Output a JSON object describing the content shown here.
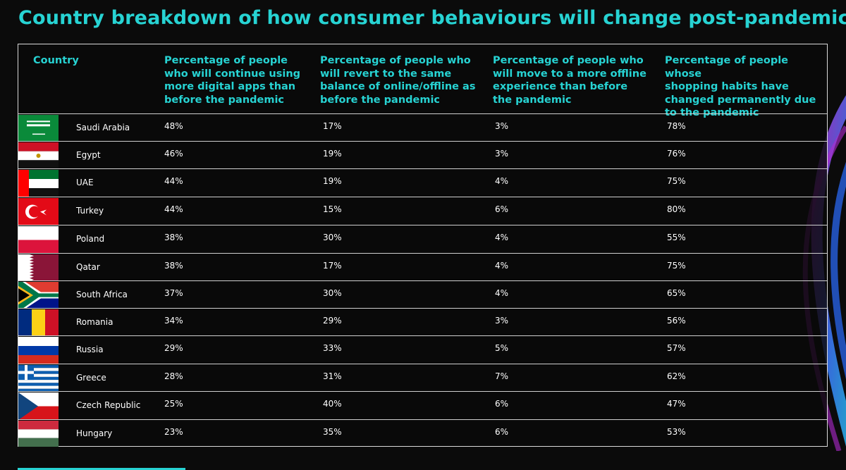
{
  "title": "Country breakdown of how consumer behaviours will change post-pandemic",
  "chart_data": {
    "type": "table",
    "title": "Country breakdown of how consumer behaviours will change post-pandemic",
    "columns": [
      "Country",
      "Percentage of people who will continue using more digital apps than before the pandemic",
      "Percentage of people who will revert to the same balance of online/offline as before the pandemic",
      "Percentage of people who will move to a more offline experience than before the pandemic",
      "Percentage of people whose shopping habits have changed permanently due to the pandemic"
    ],
    "header_lines": [
      [
        "Country"
      ],
      [
        "Percentage of people",
        "who will continue using",
        "more digital apps than",
        "before the pandemic"
      ],
      [
        "Percentage of people who",
        "will revert to the same",
        "balance of online/offline as",
        "before the pandemic"
      ],
      [
        "Percentage of people who",
        "will move to a more offline",
        "experience than before",
        "the pandemic"
      ],
      [
        "Percentage of people whose",
        "shopping habits have",
        "changed permanently due",
        "to the pandemic"
      ]
    ],
    "rows": [
      {
        "country": "Saudi Arabia",
        "flag": "saudi-arabia",
        "digital": "48%",
        "revert": "17%",
        "offline": "3%",
        "changed": "78%"
      },
      {
        "country": "Egypt",
        "flag": "egypt",
        "digital": "46%",
        "revert": "19%",
        "offline": "3%",
        "changed": "76%"
      },
      {
        "country": "UAE",
        "flag": "uae",
        "digital": "44%",
        "revert": "19%",
        "offline": "4%",
        "changed": "75%"
      },
      {
        "country": "Turkey",
        "flag": "turkey",
        "digital": "44%",
        "revert": "15%",
        "offline": "6%",
        "changed": "80%"
      },
      {
        "country": "Poland",
        "flag": "poland",
        "digital": "38%",
        "revert": "30%",
        "offline": "4%",
        "changed": "55%"
      },
      {
        "country": "Qatar",
        "flag": "qatar",
        "digital": "38%",
        "revert": "17%",
        "offline": "4%",
        "changed": "75%"
      },
      {
        "country": "South Africa",
        "flag": "south-africa",
        "digital": "37%",
        "revert": "30%",
        "offline": "4%",
        "changed": "65%"
      },
      {
        "country": "Romania",
        "flag": "romania",
        "digital": "34%",
        "revert": "29%",
        "offline": "3%",
        "changed": "56%"
      },
      {
        "country": "Russia",
        "flag": "russia",
        "digital": "29%",
        "revert": "33%",
        "offline": "5%",
        "changed": "57%"
      },
      {
        "country": "Greece",
        "flag": "greece",
        "digital": "28%",
        "revert": "31%",
        "offline": "7%",
        "changed": "62%"
      },
      {
        "country": "Czech Republic",
        "flag": "czech-republic",
        "digital": "25%",
        "revert": "40%",
        "offline": "6%",
        "changed": "47%"
      },
      {
        "country": "Hungary",
        "flag": "hungary",
        "digital": "23%",
        "revert": "35%",
        "offline": "6%",
        "changed": "53%"
      }
    ]
  },
  "colors": {
    "accent": "#27d3d3",
    "background": "#0b0b0b",
    "text": "#ffffff",
    "rule": "#cfcfcf"
  }
}
